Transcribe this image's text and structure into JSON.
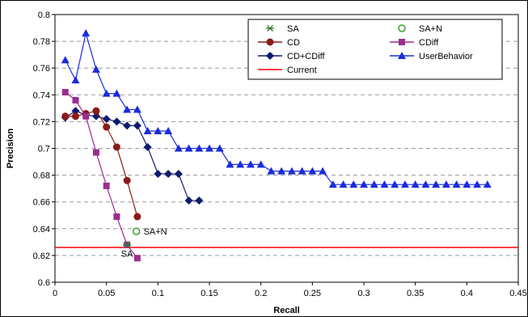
{
  "chart_data": {
    "type": "line",
    "title": "",
    "xlabel": "Recall",
    "ylabel": "Precision",
    "xlim": [
      0,
      0.45
    ],
    "ylim": [
      0.6,
      0.8
    ],
    "x_ticks": [
      "0",
      "0.05",
      "0.1",
      "0.15",
      "0.2",
      "0.25",
      "0.3",
      "0.35",
      "0.4",
      "0.45"
    ],
    "y_ticks": [
      "0.6",
      "0.62",
      "0.64",
      "0.66",
      "0.68",
      "0.7",
      "0.72",
      "0.74",
      "0.76",
      "0.78",
      "0.8"
    ],
    "grid": "horizontal dashed",
    "legend_position": "top-right",
    "series": [
      {
        "name": "SA",
        "color": "#2e7d32",
        "marker": "asterisk",
        "line": false,
        "points": [
          [
            0.07,
            0.628
          ]
        ]
      },
      {
        "name": "SA+N",
        "color": "#33a02c",
        "marker": "open-circle",
        "line": false,
        "points": [
          [
            0.079,
            0.638
          ]
        ]
      },
      {
        "name": "CD",
        "color": "#8b1a1a",
        "marker": "circle",
        "line": true,
        "points": [
          [
            0.01,
            0.724
          ],
          [
            0.02,
            0.724
          ],
          [
            0.03,
            0.726
          ],
          [
            0.04,
            0.728
          ],
          [
            0.05,
            0.716
          ],
          [
            0.06,
            0.701
          ],
          [
            0.07,
            0.676
          ],
          [
            0.08,
            0.649
          ]
        ]
      },
      {
        "name": "CDiff",
        "color": "#9b2d8f",
        "marker": "square",
        "line": true,
        "points": [
          [
            0.01,
            0.742
          ],
          [
            0.02,
            0.736
          ],
          [
            0.03,
            0.724
          ],
          [
            0.04,
            0.697
          ],
          [
            0.05,
            0.672
          ],
          [
            0.06,
            0.649
          ],
          [
            0.07,
            0.628
          ],
          [
            0.08,
            0.618
          ]
        ]
      },
      {
        "name": "CD+CDiff",
        "color": "#0d1a6e",
        "marker": "diamond",
        "line": true,
        "points": [
          [
            0.01,
            0.723
          ],
          [
            0.02,
            0.728
          ],
          [
            0.03,
            0.725
          ],
          [
            0.04,
            0.724
          ],
          [
            0.05,
            0.722
          ],
          [
            0.06,
            0.72
          ],
          [
            0.07,
            0.717
          ],
          [
            0.08,
            0.717
          ],
          [
            0.09,
            0.701
          ],
          [
            0.1,
            0.681
          ],
          [
            0.11,
            0.681
          ],
          [
            0.12,
            0.681
          ],
          [
            0.13,
            0.661
          ],
          [
            0.14,
            0.661
          ]
        ]
      },
      {
        "name": "UserBehavior",
        "color": "#1a2bdc",
        "marker": "triangle",
        "line": true,
        "points": [
          [
            0.01,
            0.766
          ],
          [
            0.02,
            0.751
          ],
          [
            0.03,
            0.786
          ],
          [
            0.04,
            0.759
          ],
          [
            0.05,
            0.741
          ],
          [
            0.06,
            0.741
          ],
          [
            0.07,
            0.729
          ],
          [
            0.08,
            0.729
          ],
          [
            0.09,
            0.713
          ],
          [
            0.1,
            0.713
          ],
          [
            0.11,
            0.713
          ],
          [
            0.12,
            0.7
          ],
          [
            0.13,
            0.7
          ],
          [
            0.14,
            0.7
          ],
          [
            0.15,
            0.7
          ],
          [
            0.16,
            0.7
          ],
          [
            0.17,
            0.688
          ],
          [
            0.18,
            0.688
          ],
          [
            0.19,
            0.688
          ],
          [
            0.2,
            0.688
          ],
          [
            0.21,
            0.683
          ],
          [
            0.22,
            0.683
          ],
          [
            0.23,
            0.683
          ],
          [
            0.24,
            0.683
          ],
          [
            0.25,
            0.683
          ],
          [
            0.26,
            0.683
          ],
          [
            0.27,
            0.673
          ],
          [
            0.28,
            0.673
          ],
          [
            0.29,
            0.673
          ],
          [
            0.3,
            0.673
          ],
          [
            0.31,
            0.673
          ],
          [
            0.32,
            0.673
          ],
          [
            0.33,
            0.673
          ],
          [
            0.34,
            0.673
          ],
          [
            0.35,
            0.673
          ],
          [
            0.36,
            0.673
          ],
          [
            0.37,
            0.673
          ],
          [
            0.38,
            0.673
          ],
          [
            0.39,
            0.673
          ],
          [
            0.4,
            0.673
          ],
          [
            0.41,
            0.673
          ],
          [
            0.42,
            0.673
          ]
        ]
      },
      {
        "name": "Current",
        "color": "#ff0000",
        "marker": "none",
        "line": true,
        "hline": 0.626
      }
    ],
    "annotations": [
      {
        "text": "SA+N",
        "x": 0.079,
        "y": 0.638
      },
      {
        "text": "SA",
        "x": 0.07,
        "y": 0.628
      }
    ]
  }
}
